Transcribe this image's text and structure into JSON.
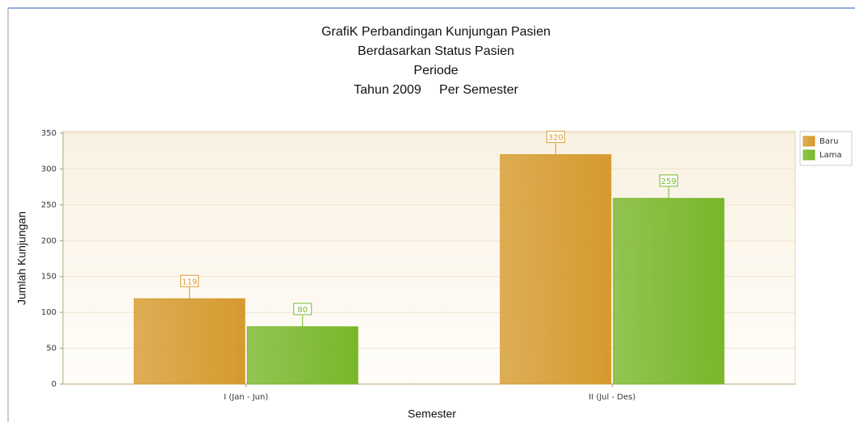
{
  "chart_data": {
    "type": "bar",
    "title": [
      "GrafiK Perbandingan Kunjungan Pasien",
      "Berdasarkan Status Pasien",
      "Periode",
      "Tahun 2009     Per Semester"
    ],
    "x_label": "Semester",
    "y_label": "Jumlah Kunjungan",
    "categories": [
      "I (Jan - Jun)",
      "II (Jul - Des)"
    ],
    "series": [
      {
        "name": "Baru",
        "color": "#d69a2e",
        "values": [
          119,
          320
        ]
      },
      {
        "name": "Lama",
        "color": "#78b72a",
        "values": [
          80,
          259
        ]
      }
    ],
    "ylim": [
      0,
      350
    ],
    "yticks": [
      0,
      50,
      100,
      150,
      200,
      250,
      300,
      350
    ],
    "grid": true,
    "legend": "top-right"
  }
}
